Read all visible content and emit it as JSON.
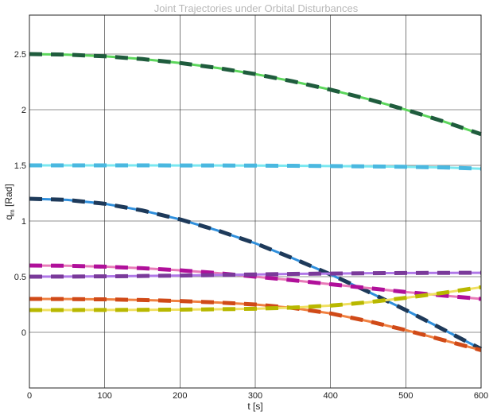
{
  "chart_data": {
    "type": "line",
    "title": "Joint Trajectories under Orbital Disturbances",
    "xlabel": "t [s]",
    "ylabel_main": "q",
    "ylabel_sub": "m",
    "ylabel_unit": " [Rad]",
    "xlim": [
      0,
      600
    ],
    "ylim": [
      -0.5,
      2.85
    ],
    "grid": true,
    "x_ticks": [
      0,
      100,
      200,
      300,
      400,
      500,
      600
    ],
    "y_ticks": [
      0,
      0.5,
      1,
      1.5,
      2,
      2.5
    ],
    "x_tick_labels": [
      "0",
      "100",
      "200",
      "300",
      "400",
      "500",
      "600"
    ],
    "y_tick_labels": [
      "0",
      "0.5",
      "1",
      "1.5",
      "2",
      "2.5"
    ],
    "x": [
      0,
      50,
      100,
      150,
      200,
      250,
      300,
      350,
      400,
      450,
      500,
      550,
      600
    ],
    "series": [
      {
        "solid_color": "#5cd65c",
        "dash_color": "#1f5c3d",
        "values": [
          2.5,
          2.495,
          2.48,
          2.455,
          2.42,
          2.375,
          2.32,
          2.255,
          2.18,
          2.095,
          2.0,
          1.895,
          1.78
        ]
      },
      {
        "solid_color": "#7ae8f0",
        "dash_color": "#4ab8e0",
        "values": [
          1.5,
          1.5,
          1.5,
          1.5,
          1.499,
          1.499,
          1.498,
          1.496,
          1.494,
          1.491,
          1.487,
          1.481,
          1.47
        ]
      },
      {
        "solid_color": "#2f8fdc",
        "dash_color": "#1e3a5a",
        "values": [
          1.2,
          1.19,
          1.155,
          1.095,
          1.015,
          0.915,
          0.8,
          0.665,
          0.52,
          0.365,
          0.2,
          0.025,
          -0.15
        ]
      },
      {
        "solid_color": "#e87ab8",
        "dash_color": "#b0109a",
        "values": [
          0.6,
          0.598,
          0.59,
          0.576,
          0.557,
          0.532,
          0.5,
          0.468,
          0.432,
          0.397,
          0.362,
          0.33,
          0.3
        ]
      },
      {
        "solid_color": "#b078e8",
        "dash_color": "#7a3a9a",
        "values": [
          0.5,
          0.501,
          0.503,
          0.506,
          0.51,
          0.515,
          0.52,
          0.525,
          0.528,
          0.531,
          0.533,
          0.534,
          0.535
        ]
      },
      {
        "solid_color": "#f08040",
        "dash_color": "#d04a18",
        "values": [
          0.3,
          0.299,
          0.296,
          0.29,
          0.281,
          0.268,
          0.25,
          0.219,
          0.17,
          0.1,
          0.02,
          -0.07,
          -0.16
        ]
      },
      {
        "solid_color": "#f0e060",
        "dash_color": "#b8b800",
        "values": [
          0.2,
          0.2,
          0.201,
          0.202,
          0.204,
          0.207,
          0.212,
          0.222,
          0.24,
          0.27,
          0.31,
          0.355,
          0.405
        ]
      }
    ]
  }
}
